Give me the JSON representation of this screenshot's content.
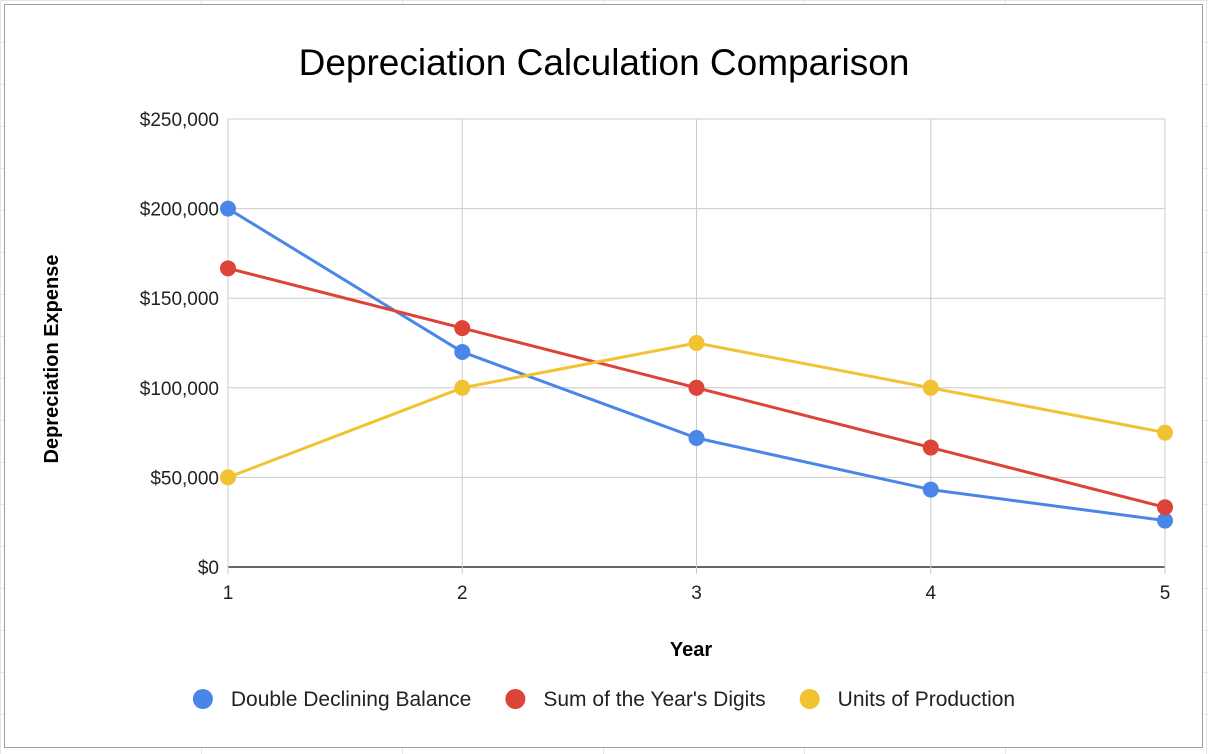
{
  "chart_data": {
    "type": "line",
    "title": "Depreciation Calculation Comparison",
    "xlabel": "Year",
    "ylabel": "Depreciation Expense",
    "x": [
      1,
      2,
      3,
      4,
      5
    ],
    "x_tick_labels": [
      "1",
      "2",
      "3",
      "4",
      "5"
    ],
    "ylim": [
      0,
      250000
    ],
    "y_ticks": [
      0,
      50000,
      100000,
      150000,
      200000,
      250000
    ],
    "y_tick_labels": [
      "$0",
      "$50,000",
      "$100,000",
      "$150,000",
      "$200,000",
      "$250,000"
    ],
    "grid": true,
    "legend_position": "bottom",
    "series": [
      {
        "name": "Double Declining Balance",
        "color": "#4a86e8",
        "values": [
          200000,
          120000,
          72000,
          43200,
          25920
        ]
      },
      {
        "name": "Sum of the Year's Digits",
        "color": "#db4437",
        "values": [
          166667,
          133333,
          100000,
          66667,
          33333
        ]
      },
      {
        "name": "Units of Production",
        "color": "#f1c232",
        "values": [
          50000,
          100000,
          125000,
          100000,
          75000
        ]
      }
    ]
  }
}
